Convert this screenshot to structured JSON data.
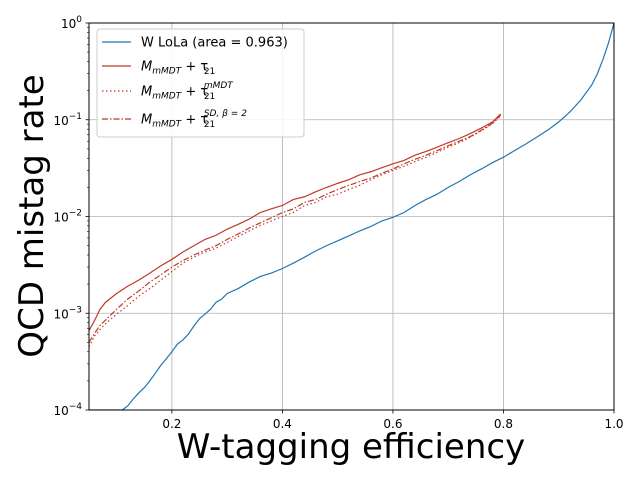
{
  "chart_data": {
    "type": "line",
    "title": "",
    "xlabel": "W-tagging efficiency",
    "ylabel": "QCD mistag rate",
    "xlim": [
      0.05,
      1.0
    ],
    "ylim": [
      0.0001,
      1
    ],
    "xscale": "linear",
    "yscale": "log",
    "grid": true,
    "legend_position": "top-left",
    "x_ticks": [
      {
        "value": 0.2,
        "label": "0.2"
      },
      {
        "value": 0.4,
        "label": "0.4"
      },
      {
        "value": 0.6,
        "label": "0.6"
      },
      {
        "value": 0.8,
        "label": "0.8"
      },
      {
        "value": 1.0,
        "label": "1.0"
      }
    ],
    "y_ticks": [
      {
        "value": 0.0001,
        "base": "10",
        "exp": "−4"
      },
      {
        "value": 0.001,
        "base": "10",
        "exp": "−3"
      },
      {
        "value": 0.01,
        "base": "10",
        "exp": "−2"
      },
      {
        "value": 0.1,
        "base": "10",
        "exp": "−1"
      },
      {
        "value": 1,
        "base": "10",
        "exp": "0"
      }
    ],
    "series": [
      {
        "name": "W LoLa (area = 0.963)",
        "legend": {
          "main": "W LoLa (area = 0.963)"
        },
        "color": "#1f77b4",
        "dash": "solid",
        "x": [
          0.05,
          0.11,
          0.12,
          0.13,
          0.14,
          0.15,
          0.16,
          0.17,
          0.18,
          0.19,
          0.2,
          0.21,
          0.22,
          0.23,
          0.24,
          0.25,
          0.26,
          0.27,
          0.28,
          0.29,
          0.3,
          0.32,
          0.34,
          0.36,
          0.38,
          0.4,
          0.42,
          0.44,
          0.46,
          0.48,
          0.5,
          0.52,
          0.54,
          0.56,
          0.58,
          0.6,
          0.62,
          0.64,
          0.66,
          0.68,
          0.7,
          0.72,
          0.74,
          0.76,
          0.78,
          0.8,
          0.82,
          0.84,
          0.86,
          0.88,
          0.9,
          0.92,
          0.94,
          0.96,
          0.97,
          0.98,
          0.99,
          1.0
        ],
        "y": [
          0.0001,
          0.0001,
          0.00011,
          0.00013,
          0.00015,
          0.00017,
          0.0002,
          0.00024,
          0.00029,
          0.00034,
          0.0004,
          0.00048,
          0.00053,
          0.00061,
          0.00074,
          0.00088,
          0.00098,
          0.0011,
          0.0013,
          0.0014,
          0.0016,
          0.0018,
          0.0021,
          0.0024,
          0.0026,
          0.0029,
          0.0033,
          0.0038,
          0.0044,
          0.005,
          0.0056,
          0.0063,
          0.0071,
          0.0079,
          0.009,
          0.0098,
          0.011,
          0.013,
          0.015,
          0.017,
          0.02,
          0.023,
          0.027,
          0.031,
          0.036,
          0.041,
          0.048,
          0.056,
          0.066,
          0.078,
          0.095,
          0.12,
          0.16,
          0.23,
          0.3,
          0.42,
          0.62,
          1.0
        ]
      },
      {
        "name": "M_mMDT + τ21",
        "legend": {
          "main": "M",
          "main_sub": "mMDT",
          "plus": " + τ",
          "tau_sub": "21",
          "tau_sup": ""
        },
        "color": "#c0392b",
        "dash": "solid",
        "x": [
          0.05,
          0.06,
          0.07,
          0.08,
          0.1,
          0.12,
          0.14,
          0.16,
          0.18,
          0.2,
          0.22,
          0.24,
          0.26,
          0.28,
          0.3,
          0.32,
          0.34,
          0.36,
          0.38,
          0.4,
          0.42,
          0.44,
          0.46,
          0.48,
          0.5,
          0.52,
          0.54,
          0.56,
          0.58,
          0.6,
          0.62,
          0.64,
          0.66,
          0.68,
          0.7,
          0.72,
          0.74,
          0.76,
          0.78,
          0.795
        ],
        "y": [
          0.00066,
          0.00084,
          0.0011,
          0.0013,
          0.0016,
          0.0019,
          0.0022,
          0.0026,
          0.0031,
          0.0036,
          0.0043,
          0.005,
          0.0058,
          0.0064,
          0.0074,
          0.0083,
          0.0094,
          0.011,
          0.012,
          0.013,
          0.015,
          0.016,
          0.018,
          0.02,
          0.022,
          0.024,
          0.027,
          0.029,
          0.032,
          0.035,
          0.038,
          0.043,
          0.047,
          0.052,
          0.058,
          0.064,
          0.072,
          0.082,
          0.095,
          0.115
        ]
      },
      {
        "name": "M_mMDT + τ21^mMDT",
        "legend": {
          "main": "M",
          "main_sub": "mMDT",
          "plus": " + τ",
          "tau_sub": "21",
          "tau_sup": "mMDT"
        },
        "color": "#c0392b",
        "dash": "1.5,2.5",
        "x": [
          0.05,
          0.06,
          0.07,
          0.08,
          0.1,
          0.12,
          0.14,
          0.16,
          0.18,
          0.2,
          0.22,
          0.24,
          0.26,
          0.28,
          0.3,
          0.32,
          0.34,
          0.36,
          0.38,
          0.4,
          0.42,
          0.44,
          0.46,
          0.48,
          0.5,
          0.52,
          0.54,
          0.56,
          0.58,
          0.6,
          0.62,
          0.64,
          0.66,
          0.68,
          0.7,
          0.72,
          0.74,
          0.76,
          0.78,
          0.795
        ],
        "y": [
          0.00045,
          0.00058,
          0.00068,
          0.00078,
          0.00098,
          0.0012,
          0.0015,
          0.0018,
          0.0022,
          0.0027,
          0.0033,
          0.0038,
          0.0043,
          0.0047,
          0.0054,
          0.0062,
          0.0071,
          0.0081,
          0.009,
          0.01,
          0.011,
          0.013,
          0.014,
          0.016,
          0.017,
          0.019,
          0.021,
          0.024,
          0.027,
          0.03,
          0.033,
          0.037,
          0.041,
          0.046,
          0.052,
          0.058,
          0.066,
          0.077,
          0.091,
          0.11
        ]
      },
      {
        "name": "M_mMDT + τ21^SD,β=2",
        "legend": {
          "main": "M",
          "main_sub": "mMDT",
          "plus": " + τ",
          "tau_sub": "21",
          "tau_sup": "SD, β = 2"
        },
        "color": "#c0392b",
        "dash": "6,2,1.5,2",
        "x": [
          0.05,
          0.06,
          0.07,
          0.08,
          0.1,
          0.12,
          0.14,
          0.16,
          0.18,
          0.2,
          0.22,
          0.24,
          0.26,
          0.28,
          0.3,
          0.32,
          0.34,
          0.36,
          0.38,
          0.4,
          0.42,
          0.44,
          0.46,
          0.48,
          0.5,
          0.52,
          0.54,
          0.56,
          0.58,
          0.6,
          0.62,
          0.64,
          0.66,
          0.68,
          0.7,
          0.72,
          0.74,
          0.76,
          0.78,
          0.795
        ],
        "y": [
          0.0005,
          0.00062,
          0.00075,
          0.00085,
          0.0011,
          0.0014,
          0.0017,
          0.0021,
          0.0025,
          0.003,
          0.0035,
          0.004,
          0.0045,
          0.005,
          0.0058,
          0.0066,
          0.0076,
          0.0086,
          0.0097,
          0.011,
          0.012,
          0.014,
          0.015,
          0.017,
          0.019,
          0.021,
          0.023,
          0.025,
          0.028,
          0.031,
          0.035,
          0.039,
          0.043,
          0.048,
          0.054,
          0.06,
          0.067,
          0.078,
          0.092,
          0.112
        ]
      }
    ]
  }
}
